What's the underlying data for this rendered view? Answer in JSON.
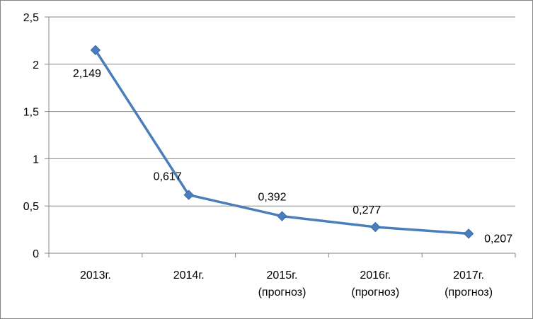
{
  "chart_data": {
    "type": "line",
    "categories": [
      [
        "2013г."
      ],
      [
        "2014г."
      ],
      [
        "2015г.",
        "(прогноз)"
      ],
      [
        "2016г.",
        "(прогноз)"
      ],
      [
        "2017г.",
        "(прогноз)"
      ]
    ],
    "values": [
      2.149,
      0.617,
      0.392,
      0.277,
      0.207
    ],
    "data_labels": [
      "2,149",
      "0,617",
      "0,392",
      "0,277",
      "0,207"
    ],
    "y_ticks": [
      {
        "value": 0,
        "label": "0"
      },
      {
        "value": 0.5,
        "label": "0,5"
      },
      {
        "value": 1,
        "label": "1"
      },
      {
        "value": 1.5,
        "label": "1,5"
      },
      {
        "value": 2,
        "label": "2"
      },
      {
        "value": 2.5,
        "label": "2,5"
      }
    ],
    "ylim": [
      0,
      2.5
    ],
    "grid": true,
    "legend": "none",
    "series_color": "#4a7ebb",
    "marker": "diamond-icon"
  }
}
